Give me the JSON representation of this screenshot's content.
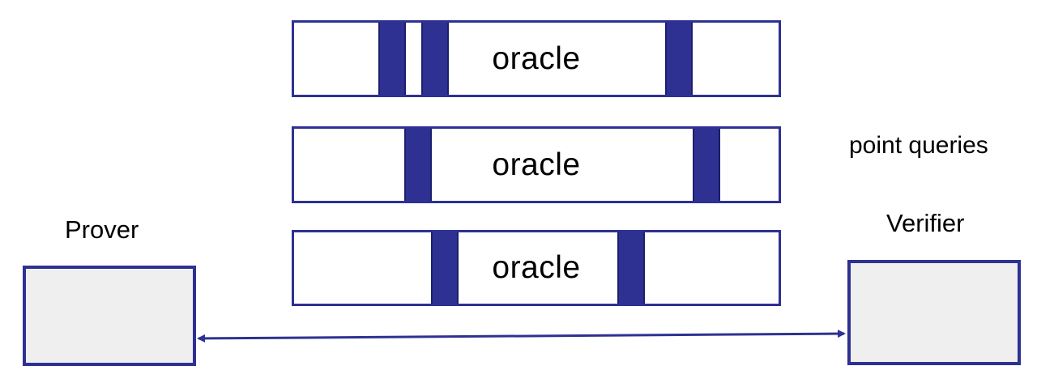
{
  "oracles": [
    {
      "label": "oracle"
    },
    {
      "label": "oracle"
    },
    {
      "label": "oracle"
    }
  ],
  "prover": {
    "label": "Prover"
  },
  "verifier": {
    "label": "Verifier"
  },
  "queries": {
    "label": "point queries"
  },
  "colors": {
    "accent": "#2e3192",
    "box_fill": "#efefef",
    "background": "#ffffff"
  }
}
